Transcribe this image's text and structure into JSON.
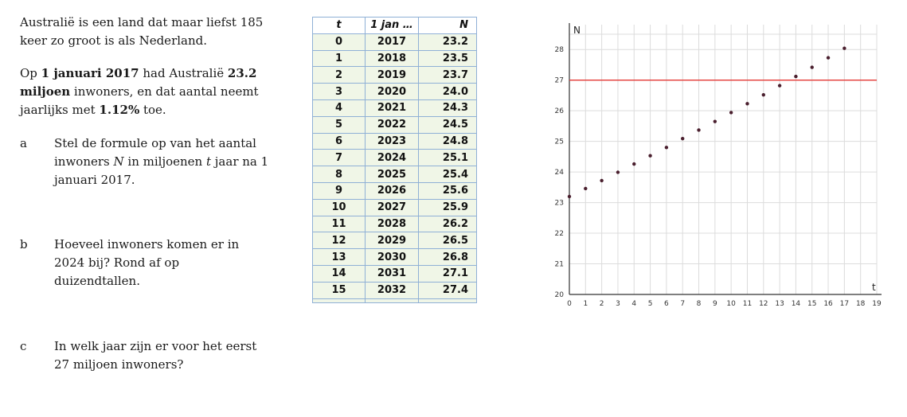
{
  "intro": {
    "p1": "Australië is een land dat maar liefst 185 keer zo groot is als Nederland.",
    "p2_a": "Op ",
    "p2_b": "1 januari 2017",
    "p2_c": " had Australië ",
    "p2_d": "23.2 miljoen",
    "p2_e": " inwoners, en dat aantal neemt jaarlijks met ",
    "p2_f": "1.12%",
    "p2_g": " toe."
  },
  "questions": {
    "a": {
      "letter": "a",
      "t1": "Stel de formule op van het aantal inwoners ",
      "var1": "N",
      "t2": " in miljoenen ",
      "var2": "t",
      "t3": " jaar na 1 januari 2017."
    },
    "b": {
      "letter": "b",
      "text": "Hoeveel inwoners komen er in 2024 bij? Rond af op duizendtallen."
    },
    "c": {
      "letter": "c",
      "text": "In welk jaar zijn er voor het eerst 27 miljoen inwoners?"
    }
  },
  "table": {
    "headers": [
      "t",
      "1 jan …",
      "N"
    ],
    "rows": [
      [
        "0",
        "2017",
        "23.2"
      ],
      [
        "1",
        "2018",
        "23.5"
      ],
      [
        "2",
        "2019",
        "23.7"
      ],
      [
        "3",
        "2020",
        "24.0"
      ],
      [
        "4",
        "2021",
        "24.3"
      ],
      [
        "5",
        "2022",
        "24.5"
      ],
      [
        "6",
        "2023",
        "24.8"
      ],
      [
        "7",
        "2024",
        "25.1"
      ],
      [
        "8",
        "2025",
        "25.4"
      ],
      [
        "9",
        "2026",
        "25.6"
      ],
      [
        "10",
        "2027",
        "25.9"
      ],
      [
        "11",
        "2028",
        "26.2"
      ],
      [
        "12",
        "2029",
        "26.5"
      ],
      [
        "13",
        "2030",
        "26.8"
      ],
      [
        "14",
        "2031",
        "27.1"
      ],
      [
        "15",
        "2032",
        "27.4"
      ]
    ]
  },
  "chart_data": {
    "type": "scatter",
    "xlabel": "t",
    "ylabel": "N",
    "xlim": [
      0,
      19
    ],
    "ylim": [
      20,
      28.5
    ],
    "xticks": [
      "0",
      "1",
      "2",
      "3",
      "4",
      "5",
      "6",
      "7",
      "8",
      "9",
      "10",
      "11",
      "12",
      "13",
      "14",
      "15",
      "16",
      "17",
      "18",
      "19"
    ],
    "yticks": [
      "20",
      "21",
      "22",
      "23",
      "24",
      "25",
      "26",
      "27",
      "28"
    ],
    "grid": true,
    "hline": {
      "y": 27,
      "color": "#e53935"
    },
    "point_color": "#4a1f2e",
    "x": [
      0,
      1,
      2,
      3,
      4,
      5,
      6,
      7,
      8,
      9,
      10,
      11,
      12,
      13,
      14,
      15,
      16,
      17
    ],
    "y": [
      23.2,
      23.46,
      23.72,
      23.99,
      24.26,
      24.53,
      24.8,
      25.09,
      25.37,
      25.65,
      25.94,
      26.23,
      26.52,
      26.82,
      27.12,
      27.42,
      27.73,
      28.04
    ]
  }
}
